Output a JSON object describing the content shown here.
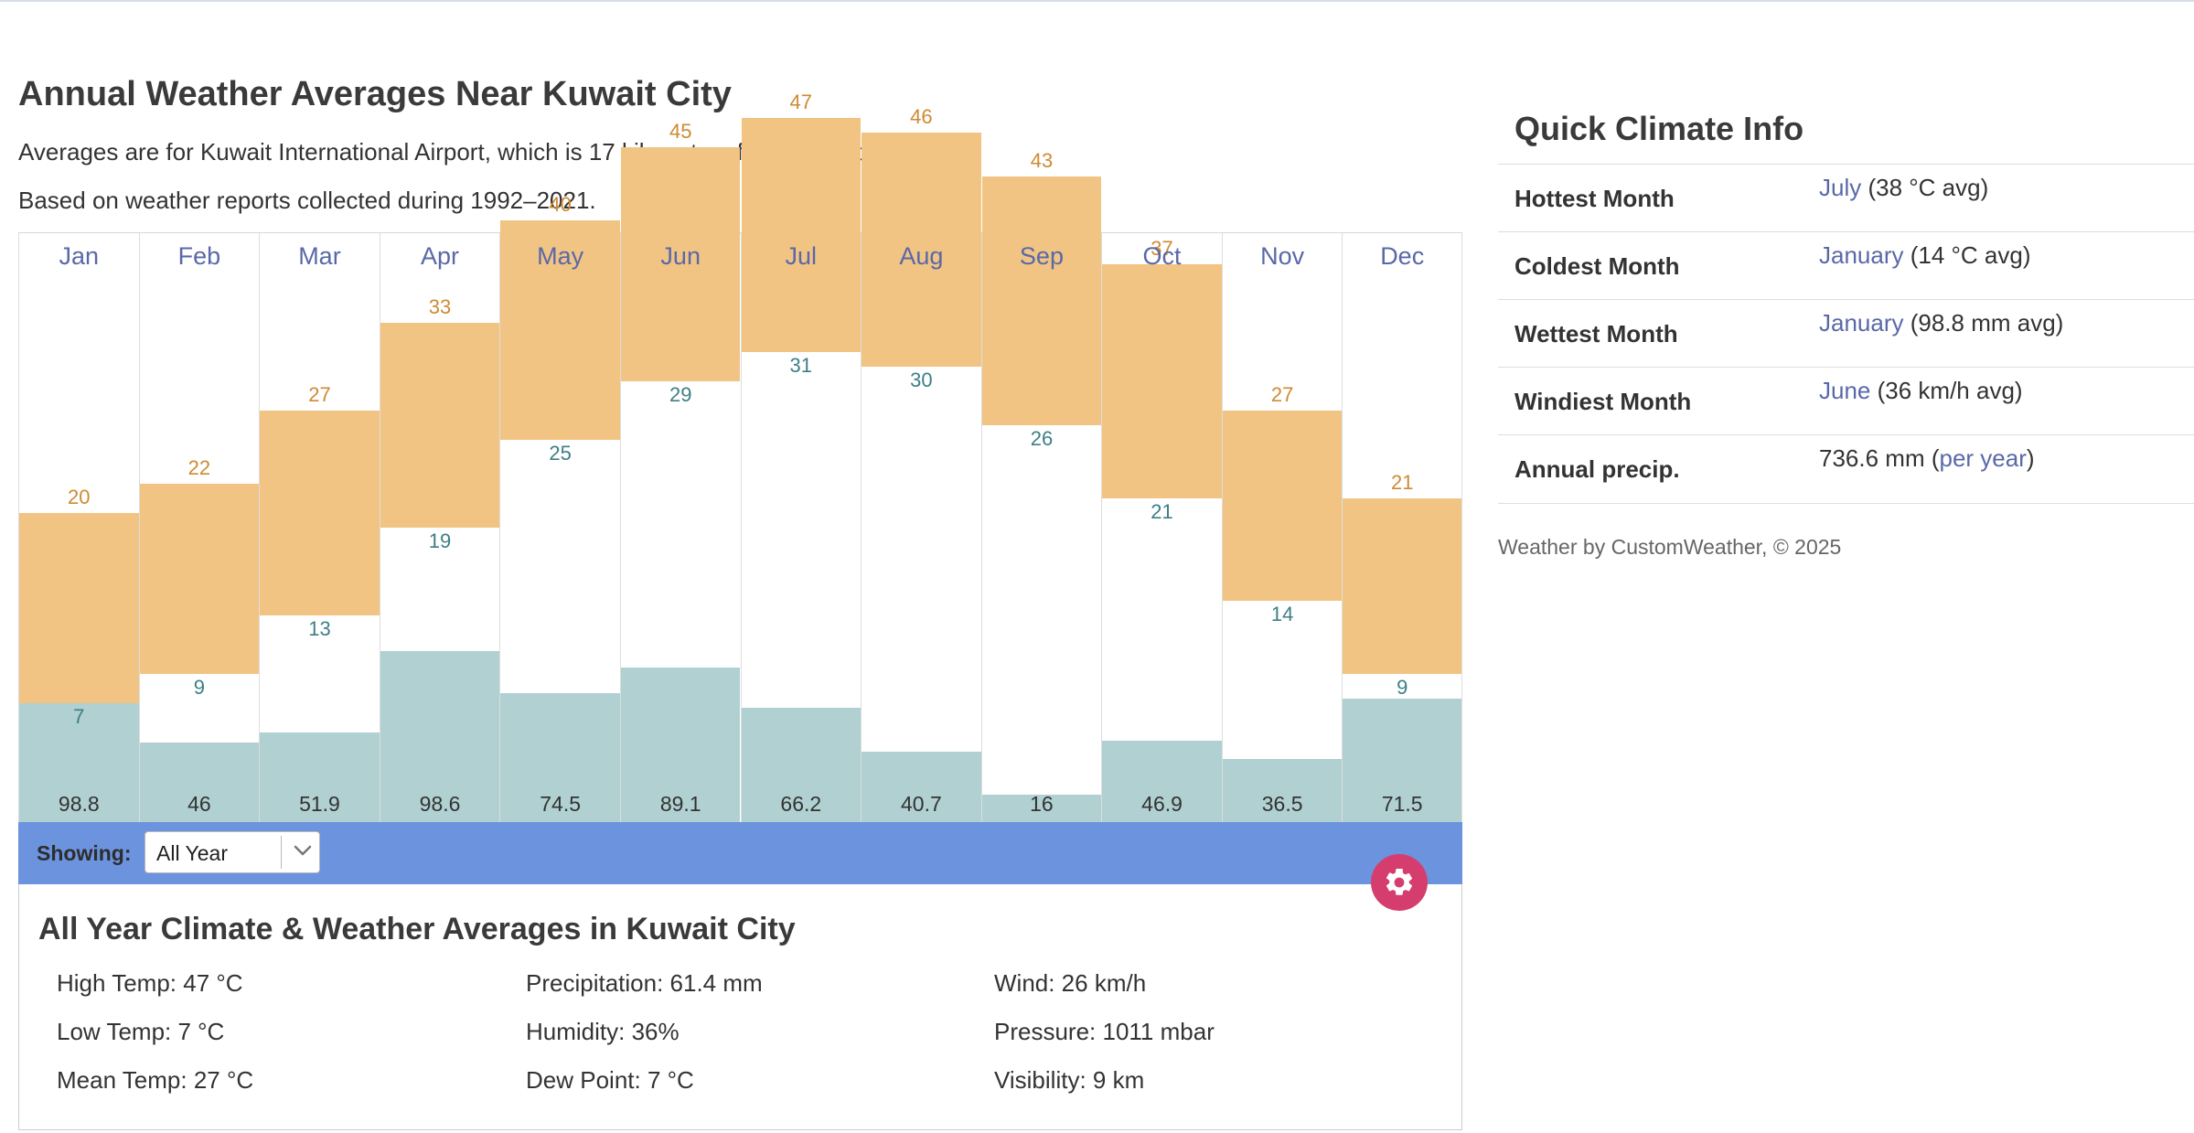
{
  "page": {
    "title": "Annual Weather Averages Near Kuwait City",
    "intro_line1": "Averages are for Kuwait International Airport, which is 17 kilometers from Kuwait City.",
    "intro_line2": "Based on weather reports collected during 1992–2021."
  },
  "colors": {
    "temp_range": "#f1c484",
    "precip": "#b0d0d1",
    "high_label": "#cf8a33",
    "low_label": "#3d7f86",
    "month_link": "#5a68a8",
    "showing_bar": "#6b93de",
    "settings_button": "#d63d6f"
  },
  "chart_data": {
    "type": "bar",
    "categories": [
      "Jan",
      "Feb",
      "Mar",
      "Apr",
      "May",
      "Jun",
      "Jul",
      "Aug",
      "Sep",
      "Oct",
      "Nov",
      "Dec"
    ],
    "series": [
      {
        "values": [
          20,
          22,
          27,
          33,
          40,
          45,
          47,
          46,
          43,
          37,
          27,
          21
        ]
      },
      {
        "values": [
          7,
          9,
          13,
          19,
          25,
          29,
          31,
          30,
          26,
          21,
          14,
          9
        ]
      },
      {
        "values": [
          98.8,
          46,
          51.9,
          98.6,
          74.5,
          89.1,
          66.2,
          40.7,
          16,
          46.9,
          36.5,
          71.5
        ]
      }
    ],
    "legend": "none",
    "grid": false
  },
  "showing": {
    "label": "Showing:",
    "selected": "All Year"
  },
  "icons": {
    "dropdown": "chevron-down-icon",
    "settings": "gear-icon"
  },
  "summary": {
    "title": "All Year Climate & Weather Averages in Kuwait City",
    "stats": [
      "High Temp: 47 °C",
      "Precipitation: 61.4 mm",
      "Wind: 26 km/h",
      "Low Temp: 7 °C",
      "Humidity: 36%",
      "Pressure: 1011 mbar",
      "Mean Temp: 27 °C",
      "Dew Point: 7 °C",
      "Visibility: 9 km"
    ]
  },
  "quick_climate": {
    "title": "Quick Climate Info",
    "rows": [
      {
        "label": "Hottest Month",
        "link": "July",
        "rest": " (38 °C avg)"
      },
      {
        "label": "Coldest Month",
        "link": "January",
        "rest": " (14 °C avg)"
      },
      {
        "label": "Wettest Month",
        "link": "January",
        "rest": " (98.8 mm avg)"
      },
      {
        "label": "Windiest Month",
        "link": "June",
        "rest": " (36 km/h avg)"
      }
    ],
    "annual": {
      "label": "Annual precip.",
      "value": "736.6 mm (",
      "link": "per year",
      "close": ")"
    },
    "credit": "Weather by CustomWeather, © 2025"
  }
}
